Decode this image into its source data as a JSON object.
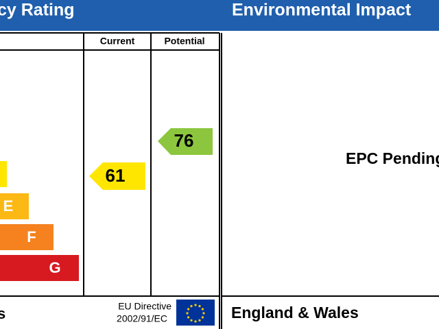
{
  "header": {
    "left_title": "cy Rating",
    "right_title": "Environmental Impact"
  },
  "efficiency": {
    "columns": [
      "Current",
      "Potential"
    ],
    "bands": [
      "E",
      "F",
      "G"
    ],
    "current": "61",
    "potential": "76"
  },
  "footer": {
    "left_fragment": "s",
    "directive": [
      "EU Directive",
      "2002/91/EC"
    ],
    "region": "England & Wales"
  },
  "environmental": {
    "status": "EPC Pending"
  }
}
